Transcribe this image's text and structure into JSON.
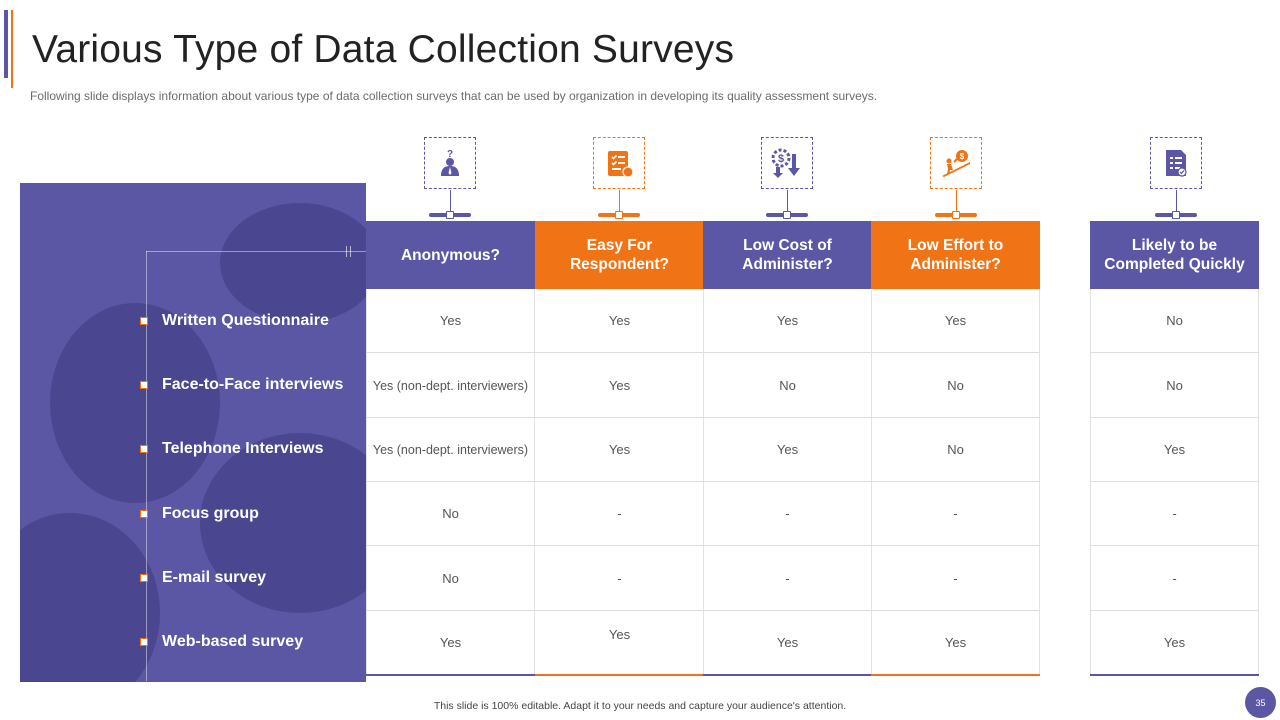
{
  "slide": {
    "title": "Various Type of Data Collection Surveys",
    "subtitle": "Following slide displays information  about various  type of data collection surveys that can be used by organization  in developing  its quality assessment surveys.",
    "footer_note": "This slide is 100% editable.  Adapt it to your needs and capture your audience's attention.",
    "page_number": "35"
  },
  "colors": {
    "purple": "#5b57a5",
    "orange": "#f07416"
  },
  "survey_types": [
    "Written Questionnaire",
    "Face-to-Face interviews",
    "Telephone Interviews",
    "Focus group",
    "E-mail survey",
    "Web-based survey"
  ],
  "columns": [
    {
      "icon": "person-question-icon",
      "header": "Anonymous?",
      "accent": "purple",
      "values": [
        "Yes",
        "Yes (non-dept. interviewers)",
        "Yes (non-dept. interviewers)",
        "No",
        "No",
        "Yes"
      ]
    },
    {
      "icon": "checklist-clipboard-icon",
      "header": "Easy For Respondent?",
      "accent": "orange",
      "values": [
        "Yes",
        "Yes",
        "Yes",
        "-",
        "-",
        "Yes"
      ]
    },
    {
      "icon": "dollar-gear-down-icon",
      "header": "Low Cost of Administer?",
      "accent": "purple",
      "values": [
        "Yes",
        "No",
        "Yes",
        "-",
        "-",
        "Yes"
      ]
    },
    {
      "icon": "climbing-effort-icon",
      "header": "Low Effort to Administer?",
      "accent": "orange",
      "values": [
        "Yes",
        "No",
        "No",
        "-",
        "-",
        "Yes"
      ]
    },
    {
      "icon": "document-check-icon",
      "header": "Likely to be Completed Quickly",
      "accent": "purple",
      "values": [
        "No",
        "No",
        "Yes",
        "-",
        "-",
        "Yes"
      ]
    }
  ]
}
